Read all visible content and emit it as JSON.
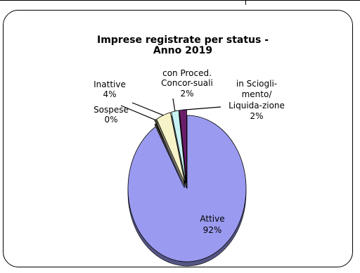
{
  "chart_data": {
    "type": "pie",
    "title": "Imprese registrate per status -",
    "title_line2": "Anno 2019",
    "slices": [
      {
        "label": "Attive",
        "value": 92,
        "pct_label": "92%",
        "color": "#9A9AF0"
      },
      {
        "label": "Sospese",
        "value": 0.4,
        "pct_label": "0%",
        "color": "#7A6A4E"
      },
      {
        "label": "Inattive",
        "value": 4,
        "pct_label": "4%",
        "color": "#F6F3C8"
      },
      {
        "label": "con Proced. Concor-suali",
        "value": 2,
        "pct_label": "2%",
        "color": "#C8F1F4"
      },
      {
        "label": "in Sciogli-mento/ Liquida-zione",
        "value": 2,
        "pct_label": "2%",
        "color": "#6A1E6A"
      }
    ],
    "labels": {
      "attive": [
        "Attive",
        "92%"
      ],
      "sospese": [
        "Sospese",
        "0%"
      ],
      "inattive": [
        "Inattive",
        "4%"
      ],
      "concorsuali": [
        "con Proced.",
        "Concor-suali",
        "2%"
      ],
      "liquidazione": [
        "in Sciogli-",
        "mento/",
        "Liquida-zione",
        "2%"
      ]
    },
    "legend": "none",
    "exploded": true,
    "style": "3d"
  }
}
